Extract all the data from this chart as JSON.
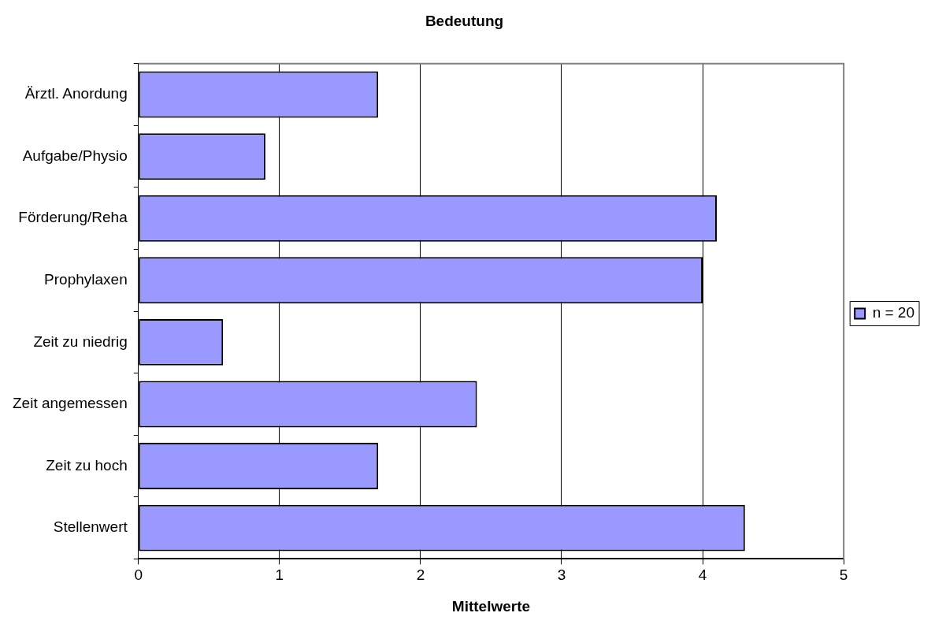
{
  "chart_data": {
    "type": "bar",
    "orientation": "horizontal",
    "title": "Bedeutung",
    "xlabel": "Mittelwerte",
    "categories": [
      "Ärztl. Anordung",
      "Aufgabe/Physio",
      "Förderung/Reha",
      "Prophylaxen",
      "Zeit zu niedrig",
      "Zeit angemessen",
      "Zeit zu hoch",
      "Stellenwert"
    ],
    "series": [
      {
        "name": "n = 20",
        "color": "#9999ff",
        "values": [
          1.7,
          0.9,
          4.1,
          4.0,
          0.6,
          2.4,
          1.7,
          4.3
        ]
      }
    ],
    "xlim": [
      0,
      5
    ],
    "xticks": [
      0,
      1,
      2,
      3,
      4,
      5
    ],
    "grid": "x",
    "legend": "right"
  }
}
